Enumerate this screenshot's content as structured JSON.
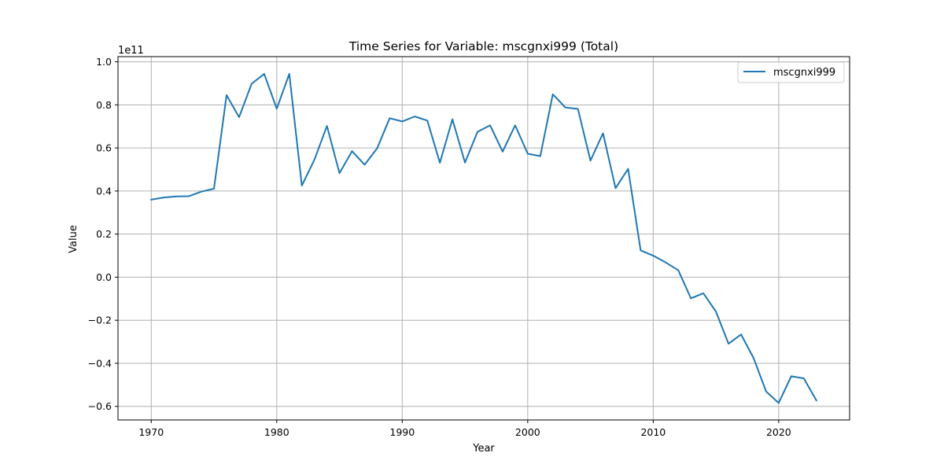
{
  "chart_data": {
    "type": "line",
    "title": "Time Series for Variable: mscgnxi999 (Total)",
    "xlabel": "Year",
    "ylabel": "Value",
    "y_offset_label": "1e11",
    "xlim": [
      1967.35,
      2025.65
    ],
    "ylim": [
      -0.663,
      1.024
    ],
    "x_ticks": [
      1970,
      1980,
      1990,
      2000,
      2010,
      2020
    ],
    "x_tick_labels": [
      "1970",
      "1980",
      "1990",
      "2000",
      "2010",
      "2020"
    ],
    "y_ticks": [
      -0.6,
      -0.4,
      -0.2,
      0.0,
      0.2,
      0.4,
      0.6,
      0.8,
      1.0
    ],
    "y_tick_labels": [
      "−0.6",
      "−0.4",
      "−0.2",
      "0.0",
      "0.2",
      "0.4",
      "0.6",
      "0.8",
      "1.0"
    ],
    "grid": true,
    "legend_position": "top-right",
    "series": [
      {
        "name": "mscgnxi999",
        "color": "#1f77b4",
        "x": [
          1970,
          1971,
          1972,
          1973,
          1974,
          1975,
          1976,
          1977,
          1978,
          1979,
          1980,
          1981,
          1982,
          1983,
          1984,
          1985,
          1986,
          1987,
          1988,
          1989,
          1990,
          1991,
          1992,
          1993,
          1994,
          1995,
          1996,
          1997,
          1998,
          1999,
          2000,
          2001,
          2002,
          2003,
          2004,
          2005,
          2006,
          2007,
          2008,
          2009,
          2010,
          2011,
          2012,
          2013,
          2014,
          2015,
          2016,
          2017,
          2018,
          2019,
          2020,
          2021,
          2022,
          2023
        ],
        "y": [
          0.36,
          0.37,
          0.375,
          0.376,
          0.397,
          0.411,
          0.845,
          0.743,
          0.898,
          0.944,
          0.782,
          0.944,
          0.425,
          0.545,
          0.702,
          0.483,
          0.585,
          0.522,
          0.598,
          0.738,
          0.723,
          0.746,
          0.727,
          0.531,
          0.733,
          0.532,
          0.675,
          0.705,
          0.583,
          0.705,
          0.573,
          0.562,
          0.849,
          0.788,
          0.781,
          0.541,
          0.668,
          0.413,
          0.503,
          0.124,
          0.1,
          0.068,
          0.032,
          -0.098,
          -0.075,
          -0.16,
          -0.309,
          -0.266,
          -0.376,
          -0.531,
          -0.584,
          -0.46,
          -0.47,
          -0.572
        ]
      }
    ]
  }
}
